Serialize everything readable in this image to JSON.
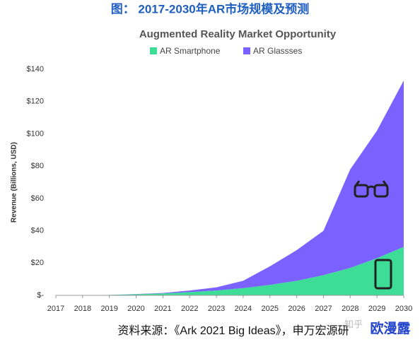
{
  "header": {
    "title": "图： 2017-2030年AR市场规模及预测"
  },
  "chart_data": {
    "type": "stacked-area",
    "title": "Augmented Reality Market Opportunity",
    "y_label": "Revenue (Billions, USD)",
    "x": [
      2017,
      2018,
      2019,
      2020,
      2021,
      2022,
      2023,
      2024,
      2025,
      2026,
      2027,
      2028,
      2029,
      2030
    ],
    "xlim": [
      2017,
      2030
    ],
    "xticks": [
      2017,
      2018,
      2019,
      2020,
      2021,
      2022,
      2023,
      2024,
      2025,
      2026,
      2027,
      2028,
      2029,
      2030
    ],
    "ylim": [
      0,
      140
    ],
    "yticks": [
      {
        "value": 0,
        "label": "$-"
      },
      {
        "value": 20,
        "label": "$20"
      },
      {
        "value": 40,
        "label": "$40"
      },
      {
        "value": 60,
        "label": "$60"
      },
      {
        "value": 80,
        "label": "$80"
      },
      {
        "value": 100,
        "label": "$100"
      },
      {
        "value": 120,
        "label": "$120"
      },
      {
        "value": 140,
        "label": "$140"
      }
    ],
    "grid": false,
    "series": [
      {
        "name": "AR Smartphone",
        "color": "#3ddc97",
        "values": [
          0,
          0,
          0.3,
          0.7,
          1.2,
          2,
          3,
          4.5,
          6.5,
          9,
          12.5,
          17,
          23,
          30
        ]
      },
      {
        "name": "AR Glassses",
        "color": "#7b61ff",
        "values": [
          0,
          0,
          0,
          0.1,
          0.3,
          1,
          2,
          4.5,
          11.5,
          19,
          27.5,
          61,
          79,
          103
        ]
      }
    ]
  },
  "footer": {
    "source": "资料来源：《Ark 2021 Big Ideas》，申万宏源研",
    "watermark": "欧漫露",
    "watermark_site": "知乎"
  }
}
